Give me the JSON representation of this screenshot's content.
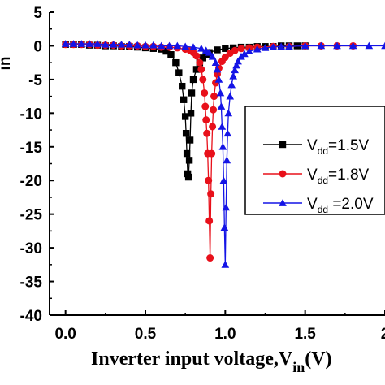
{
  "chart_data": {
    "type": "line",
    "title": "",
    "xlabel": "Inverter input voltage,V",
    "xlabel_sub": "in",
    "xlabel_unit": "(V)",
    "ylabel_fragment": "in",
    "xlim": [
      -0.1,
      2.0
    ],
    "ylim": [
      -40,
      5
    ],
    "x_ticks": [
      0.0,
      0.5,
      1.0,
      1.5,
      2.0
    ],
    "x_tick_labels": [
      "0.0",
      "0.5",
      "1.0",
      "1.5",
      "2"
    ],
    "y_ticks": [
      5,
      0,
      -5,
      -10,
      -15,
      -20,
      -25,
      -30,
      -35,
      -40
    ],
    "y_tick_labels": [
      "5",
      "0",
      "-5",
      "-10",
      "-15",
      "-20",
      "-25",
      "-30",
      "-35",
      "-40"
    ],
    "legend_position": "right",
    "series": [
      {
        "name_main": "V",
        "name_sub": "dd",
        "name_rest": "=1.5V",
        "color": "#000000",
        "marker": "square",
        "x": [
          0.0,
          0.05,
          0.1,
          0.15,
          0.2,
          0.25,
          0.3,
          0.35,
          0.4,
          0.45,
          0.5,
          0.55,
          0.6,
          0.63,
          0.66,
          0.69,
          0.71,
          0.73,
          0.74,
          0.75,
          0.755,
          0.76,
          0.765,
          0.77,
          0.775,
          0.78,
          0.785,
          0.79,
          0.8,
          0.82,
          0.84,
          0.86,
          0.88,
          0.9,
          0.95,
          1.0,
          1.05,
          1.1,
          1.15,
          1.2,
          1.25,
          1.3,
          1.35,
          1.4,
          1.45,
          1.5
        ],
        "y": [
          0.2,
          0.2,
          0.2,
          0.1,
          0.1,
          0.0,
          0.0,
          -0.1,
          -0.1,
          -0.2,
          -0.3,
          -0.4,
          -0.5,
          -0.8,
          -1.3,
          -2.5,
          -4.0,
          -6.0,
          -8.0,
          -10.5,
          -13.0,
          -16.0,
          -19.0,
          -19.5,
          -17.0,
          -14.0,
          -10.0,
          -7.0,
          -5.0,
          -3.5,
          -2.5,
          -1.8,
          -1.3,
          -1.0,
          -0.6,
          -0.4,
          -0.3,
          -0.2,
          -0.2,
          -0.1,
          -0.1,
          -0.1,
          0.0,
          0.0,
          0.0,
          0.0
        ]
      },
      {
        "name_main": "V",
        "name_sub": "dd",
        "name_rest": "=1.8V",
        "color": "#e8101a",
        "marker": "circle",
        "x": [
          0.0,
          0.05,
          0.1,
          0.15,
          0.2,
          0.25,
          0.3,
          0.35,
          0.4,
          0.45,
          0.5,
          0.55,
          0.6,
          0.65,
          0.7,
          0.75,
          0.78,
          0.8,
          0.82,
          0.84,
          0.85,
          0.86,
          0.87,
          0.875,
          0.88,
          0.885,
          0.89,
          0.895,
          0.9,
          0.905,
          0.91,
          0.915,
          0.92,
          0.925,
          0.93,
          0.94,
          0.95,
          0.96,
          0.98,
          1.0,
          1.03,
          1.06,
          1.1,
          1.15,
          1.2,
          1.3,
          1.4,
          1.5,
          1.6,
          1.7,
          1.8
        ],
        "y": [
          0.2,
          0.2,
          0.2,
          0.2,
          0.1,
          0.1,
          0.1,
          0.0,
          0.0,
          0.0,
          -0.1,
          -0.1,
          -0.2,
          -0.2,
          -0.3,
          -0.5,
          -0.7,
          -1.0,
          -1.5,
          -2.5,
          -3.5,
          -5.0,
          -7.0,
          -9.0,
          -11.0,
          -13.0,
          -16.0,
          -20.0,
          -26.0,
          -31.5,
          -22.0,
          -16.0,
          -12.0,
          -9.5,
          -7.5,
          -5.5,
          -4.2,
          -3.3,
          -2.3,
          -1.7,
          -1.1,
          -0.7,
          -0.4,
          -0.3,
          -0.2,
          -0.1,
          -0.1,
          0.0,
          0.0,
          0.0,
          0.0
        ]
      },
      {
        "name_main": "V",
        "name_sub": "dd",
        "name_rest": " =2.0V",
        "color": "#1414e6",
        "marker": "triangle",
        "x": [
          0.0,
          0.05,
          0.1,
          0.15,
          0.2,
          0.25,
          0.3,
          0.35,
          0.4,
          0.45,
          0.5,
          0.55,
          0.6,
          0.65,
          0.7,
          0.75,
          0.8,
          0.85,
          0.88,
          0.9,
          0.92,
          0.94,
          0.95,
          0.96,
          0.97,
          0.975,
          0.98,
          0.985,
          0.99,
          0.995,
          1.0,
          1.005,
          1.01,
          1.015,
          1.02,
          1.03,
          1.04,
          1.05,
          1.06,
          1.07,
          1.08,
          1.1,
          1.12,
          1.15,
          1.2,
          1.25,
          1.3,
          1.35,
          1.4,
          1.5,
          1.6,
          1.7,
          1.8,
          1.9,
          2.0
        ],
        "y": [
          0.3,
          0.3,
          0.3,
          0.3,
          0.3,
          0.2,
          0.2,
          0.2,
          0.2,
          0.1,
          0.1,
          0.1,
          0.0,
          0.0,
          0.0,
          -0.1,
          -0.2,
          -0.4,
          -0.7,
          -1.0,
          -1.6,
          -2.5,
          -3.5,
          -5.0,
          -7.0,
          -9.0,
          -12.0,
          -15.0,
          -20.0,
          -27.0,
          -32.5,
          -24.0,
          -17.0,
          -13.0,
          -10.0,
          -7.5,
          -5.8,
          -4.5,
          -3.6,
          -2.9,
          -2.3,
          -1.6,
          -1.2,
          -0.8,
          -0.5,
          -0.3,
          -0.2,
          -0.1,
          -0.1,
          0.0,
          0.0,
          0.0,
          0.0,
          0.0,
          0.0
        ]
      }
    ]
  }
}
